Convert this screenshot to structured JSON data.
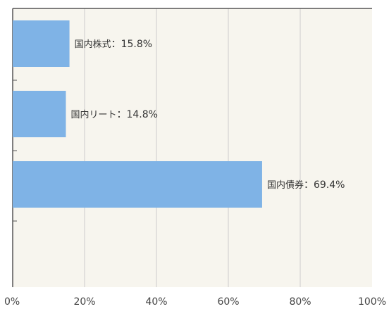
{
  "chart_data": {
    "type": "bar",
    "orientation": "horizontal",
    "categories": [
      "国内株式",
      "国内リート",
      "国内債券"
    ],
    "values": [
      15.8,
      14.8,
      69.4
    ],
    "separator": "：",
    "unit": "%",
    "xlim": [
      0,
      100
    ],
    "x_ticks": [
      "0%",
      "20%",
      "40%",
      "60%",
      "80%",
      "100%"
    ],
    "grid": true,
    "colors": {
      "bar": "#7fb3e6",
      "plot_background": "#f7f5ee",
      "grid": "#cccccc",
      "axis": "#555555"
    }
  }
}
